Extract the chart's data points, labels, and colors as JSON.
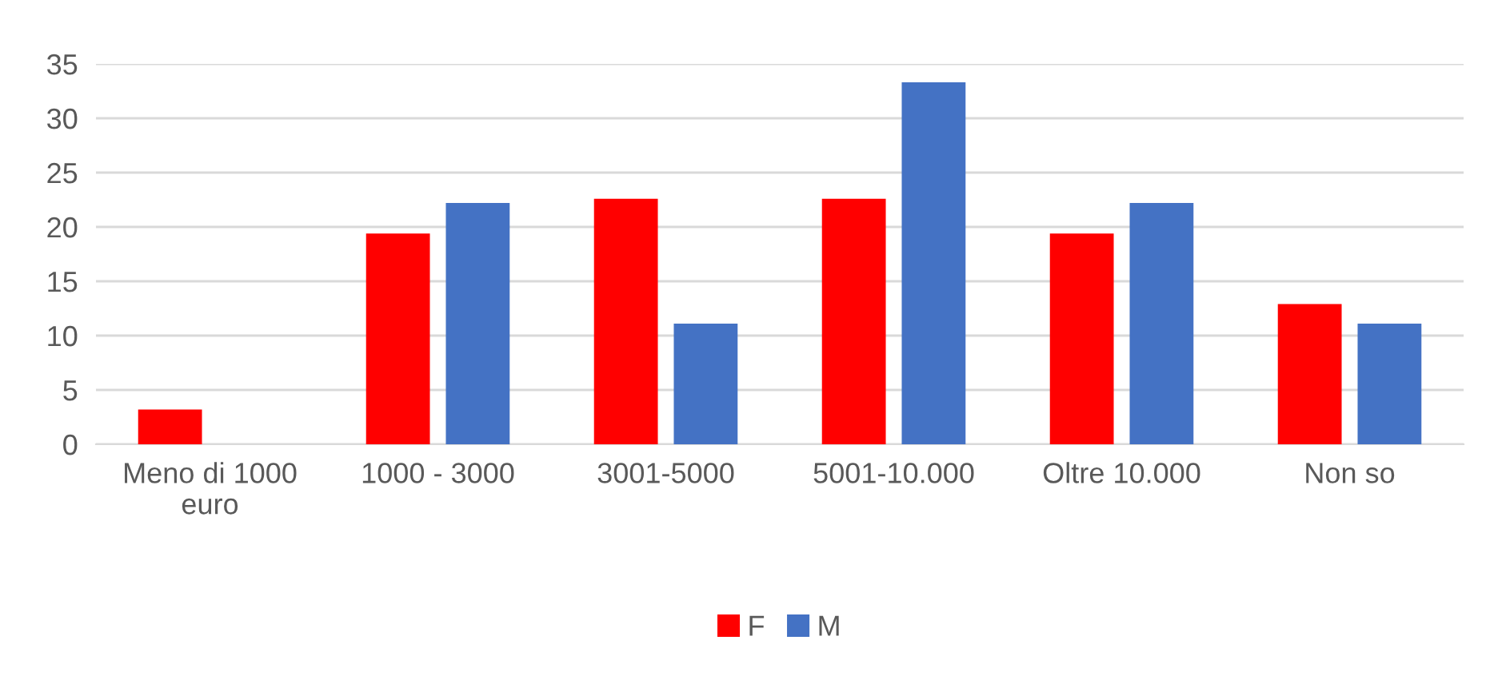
{
  "chart_data": {
    "type": "bar",
    "categories": [
      "Meno di 1000\neuro",
      "1000 - 3000",
      "3001-5000",
      "5001-10.000",
      "Oltre 10.000",
      "Non so"
    ],
    "series": [
      {
        "name": "F",
        "color": "#ff0000",
        "values": [
          3.2,
          19.4,
          22.6,
          22.6,
          19.4,
          12.9
        ]
      },
      {
        "name": "M",
        "color": "#4472c4",
        "values": [
          0,
          22.2,
          11.1,
          33.3,
          22.2,
          11.1
        ]
      }
    ],
    "ylim": [
      0,
      35
    ],
    "yticks": [
      0,
      5,
      10,
      15,
      20,
      25,
      30,
      35
    ],
    "grid": "y",
    "legend": "bottom"
  }
}
